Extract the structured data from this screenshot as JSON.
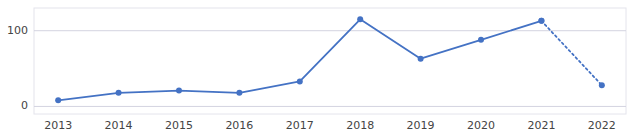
{
  "chart_data": {
    "type": "line",
    "x": [
      2013,
      2014,
      2015,
      2016,
      2017,
      2018,
      2019,
      2020,
      2021,
      2022
    ],
    "series": [
      {
        "color": "#4472C4",
        "line_style": "solid",
        "marker": "circle",
        "values": [
          8,
          18,
          21,
          18,
          33,
          115,
          63,
          88,
          113,
          null
        ]
      },
      {
        "color": "#4472C4",
        "line_style": "dotted",
        "marker": "circle",
        "values": [
          null,
          null,
          null,
          null,
          null,
          null,
          null,
          null,
          113,
          28
        ]
      }
    ],
    "xlim": [
      2012.6,
      2022.4
    ],
    "xticks": [
      2013,
      2014,
      2015,
      2016,
      2017,
      2018,
      2019,
      2020,
      2021,
      2022
    ],
    "ylim": [
      -10,
      130
    ],
    "yticks": [
      0,
      100
    ],
    "grid": true
  }
}
